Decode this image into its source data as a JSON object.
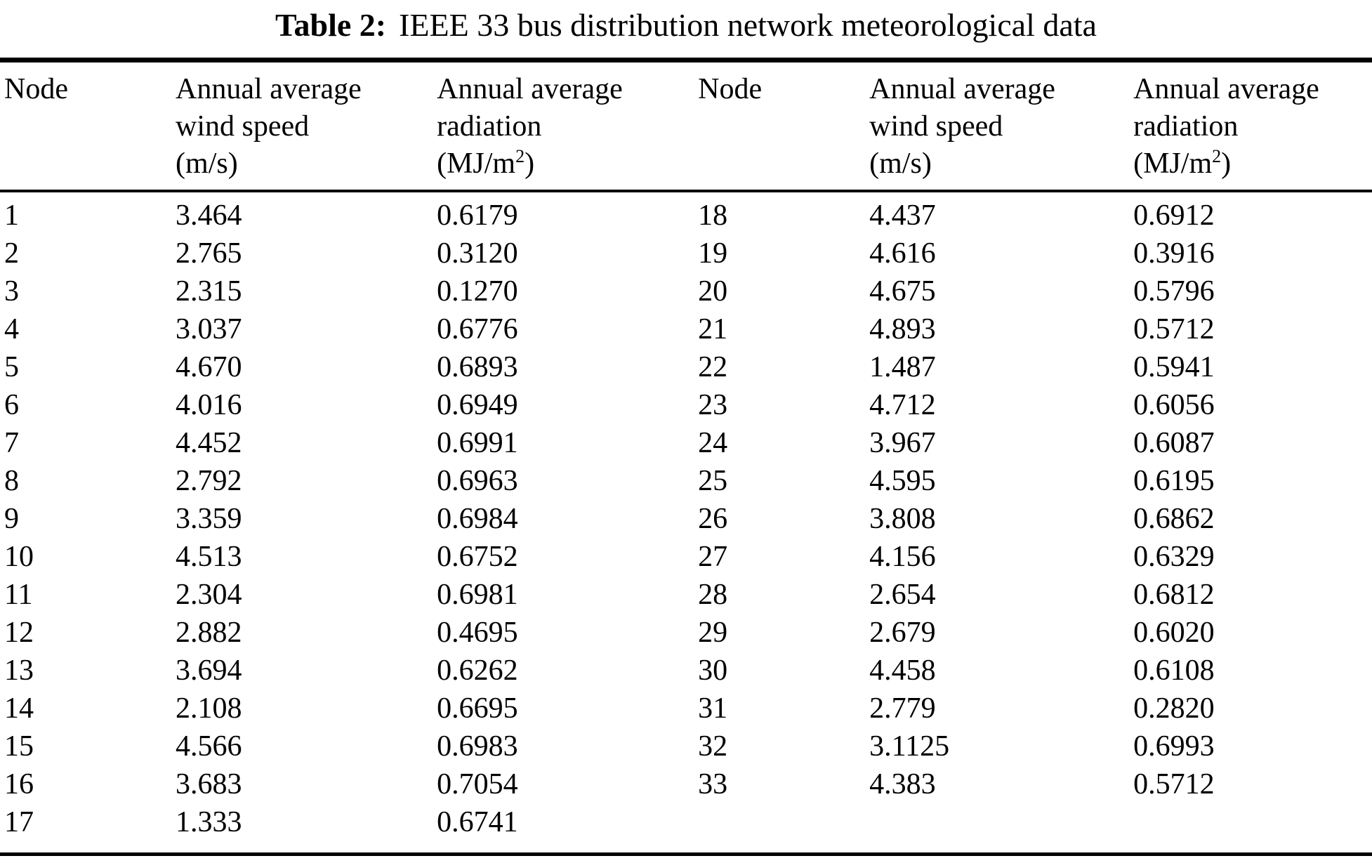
{
  "caption": {
    "label": "Table 2:",
    "text": "IEEE 33 bus distribution network meteorological data"
  },
  "columns": {
    "node": "Node",
    "wind_line1": "Annual average",
    "wind_line2": "wind speed",
    "wind_line3": "(m/s)",
    "rad_line1": "Annual average",
    "rad_line2": "radiation",
    "rad_line3_pre": "(MJ/m",
    "rad_line3_sup": "2",
    "rad_line3_post": ")"
  },
  "rows": [
    [
      "1",
      "3.464",
      "0.6179",
      "18",
      "4.437",
      "0.6912"
    ],
    [
      "2",
      "2.765",
      "0.3120",
      "19",
      "4.616",
      "0.3916"
    ],
    [
      "3",
      "2.315",
      "0.1270",
      "20",
      "4.675",
      "0.5796"
    ],
    [
      "4",
      "3.037",
      "0.6776",
      "21",
      "4.893",
      "0.5712"
    ],
    [
      "5",
      "4.670",
      "0.6893",
      "22",
      "1.487",
      "0.5941"
    ],
    [
      "6",
      "4.016",
      "0.6949",
      "23",
      "4.712",
      "0.6056"
    ],
    [
      "7",
      "4.452",
      "0.6991",
      "24",
      "3.967",
      "0.6087"
    ],
    [
      "8",
      "2.792",
      "0.6963",
      "25",
      "4.595",
      "0.6195"
    ],
    [
      "9",
      "3.359",
      "0.6984",
      "26",
      "3.808",
      "0.6862"
    ],
    [
      "10",
      "4.513",
      "0.6752",
      "27",
      "4.156",
      "0.6329"
    ],
    [
      "11",
      "2.304",
      "0.6981",
      "28",
      "2.654",
      "0.6812"
    ],
    [
      "12",
      "2.882",
      "0.4695",
      "29",
      "2.679",
      "0.6020"
    ],
    [
      "13",
      "3.694",
      "0.6262",
      "30",
      "4.458",
      "0.6108"
    ],
    [
      "14",
      "2.108",
      "0.6695",
      "31",
      "2.779",
      "0.2820"
    ],
    [
      "15",
      "4.566",
      "0.6983",
      "32",
      "3.1125",
      "0.6993"
    ],
    [
      "16",
      "3.683",
      "0.7054",
      "33",
      "4.383",
      "0.5712"
    ],
    [
      "17",
      "1.333",
      "0.6741",
      "",
      "",
      ""
    ]
  ]
}
